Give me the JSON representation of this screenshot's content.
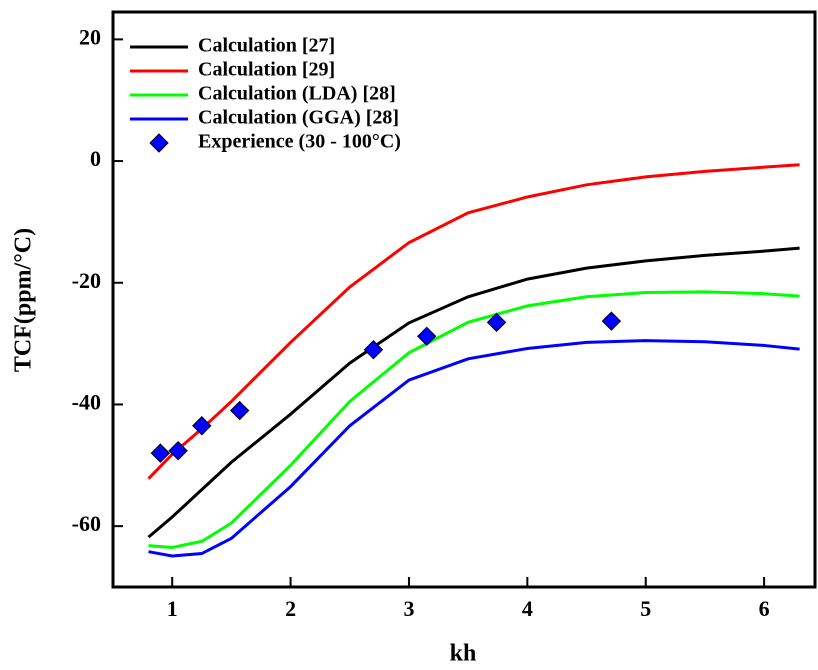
{
  "chart_data": {
    "type": "line",
    "xlabel": "kh",
    "ylabel": "TCF(ppm/°C)",
    "xlim": [
      0.5,
      6.43
    ],
    "ylim": [
      -70,
      24.5
    ],
    "xticks": [
      1,
      2,
      3,
      4,
      5,
      6
    ],
    "yticks": [
      -60,
      -40,
      -20,
      0,
      20
    ],
    "legend": "upper left",
    "series": [
      {
        "name": "Calculation [27]",
        "color": "#000000",
        "style": "line",
        "x": [
          0.8,
          1,
          1.25,
          1.5,
          2,
          2.5,
          3,
          3.5,
          4,
          4.5,
          5,
          5.5,
          6,
          6.3
        ],
        "values": [
          -61.8,
          -58.5,
          -54,
          -49.5,
          -41.6,
          -33.2,
          -26.6,
          -22.3,
          -19.4,
          -17.6,
          -16.4,
          -15.5,
          -14.8,
          -14.3
        ]
      },
      {
        "name": "Calculation [29]",
        "color": "#ff0000",
        "style": "line",
        "x": [
          0.8,
          1,
          1.25,
          1.5,
          2,
          2.5,
          3,
          3.5,
          4,
          4.5,
          5,
          5.5,
          6,
          6.3
        ],
        "values": [
          -52.2,
          -48.2,
          -44,
          -39.5,
          -29.8,
          -20.7,
          -13.4,
          -8.5,
          -5.9,
          -3.9,
          -2.6,
          -1.7,
          -1.0,
          -0.6
        ]
      },
      {
        "name": "Calculation (LDA) [28]",
        "color": "#00ff00",
        "style": "line",
        "x": [
          0.8,
          1,
          1.25,
          1.5,
          2,
          2.5,
          3,
          3.5,
          4,
          4.5,
          5,
          5.5,
          6,
          6.3
        ],
        "values": [
          -63.2,
          -63.5,
          -62.5,
          -59.5,
          -50,
          -39.5,
          -31.5,
          -26.5,
          -23.8,
          -22.3,
          -21.6,
          -21.5,
          -21.8,
          -22.2
        ]
      },
      {
        "name": "Calculation (GGA) [28]",
        "color": "#0000ff",
        "style": "line",
        "x": [
          0.8,
          1,
          1.25,
          1.5,
          2,
          2.5,
          3,
          3.5,
          4,
          4.5,
          5,
          5.5,
          6,
          6.3
        ],
        "values": [
          -64.2,
          -64.9,
          -64.5,
          -62,
          -53.5,
          -43.5,
          -36,
          -32.5,
          -30.8,
          -29.8,
          -29.5,
          -29.7,
          -30.3,
          -30.9
        ]
      },
      {
        "name": "Experience (30 - 100°C)",
        "color": "#0000ff",
        "style": "marker",
        "x": [
          0.9,
          1.05,
          1.25,
          1.57,
          2.7,
          3.15,
          3.74,
          4.71
        ],
        "values": [
          -48,
          -47.6,
          -43.5,
          -41,
          -31,
          -28.8,
          -26.5,
          -26.3
        ]
      }
    ]
  }
}
